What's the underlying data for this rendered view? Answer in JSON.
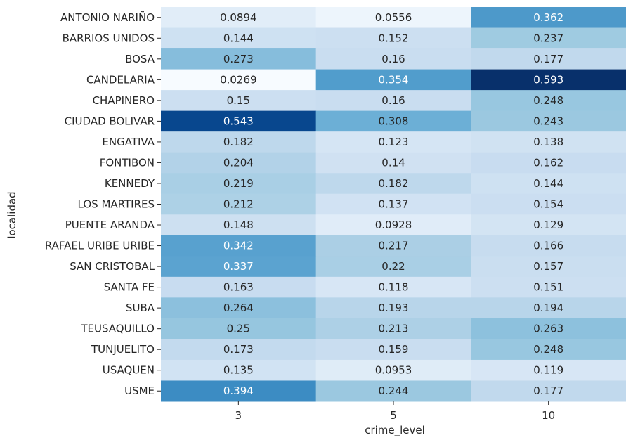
{
  "chart_data": {
    "type": "heatmap",
    "xlabel": "crime_level",
    "ylabel": "localidad",
    "columns": [
      "3",
      "5",
      "10"
    ],
    "rows": [
      "ANTONIO NARIÑO",
      "BARRIOS UNIDOS",
      "BOSA",
      "CANDELARIA",
      "CHAPINERO",
      "CIUDAD BOLIVAR",
      "ENGATIVA",
      "FONTIBON",
      "KENNEDY",
      "LOS MARTIRES",
      "PUENTE ARANDA",
      "RAFAEL URIBE URIBE",
      "SAN CRISTOBAL",
      "SANTA FE",
      "SUBA",
      "TEUSAQUILLO",
      "TUNJUELITO",
      "USAQUEN",
      "USME"
    ],
    "values": [
      [
        0.0894,
        0.0556,
        0.362
      ],
      [
        0.144,
        0.152,
        0.237
      ],
      [
        0.273,
        0.16,
        0.177
      ],
      [
        0.0269,
        0.354,
        0.593
      ],
      [
        0.15,
        0.16,
        0.248
      ],
      [
        0.543,
        0.308,
        0.243
      ],
      [
        0.182,
        0.123,
        0.138
      ],
      [
        0.204,
        0.14,
        0.162
      ],
      [
        0.219,
        0.182,
        0.144
      ],
      [
        0.212,
        0.137,
        0.154
      ],
      [
        0.148,
        0.0928,
        0.129
      ],
      [
        0.342,
        0.217,
        0.166
      ],
      [
        0.337,
        0.22,
        0.157
      ],
      [
        0.163,
        0.118,
        0.151
      ],
      [
        0.264,
        0.193,
        0.194
      ],
      [
        0.25,
        0.213,
        0.263
      ],
      [
        0.173,
        0.159,
        0.248
      ],
      [
        0.135,
        0.0953,
        0.119
      ],
      [
        0.394,
        0.244,
        0.177
      ]
    ],
    "colormap": "Blues",
    "annotations": true,
    "vmin": 0.0269,
    "vmax": 0.593
  }
}
